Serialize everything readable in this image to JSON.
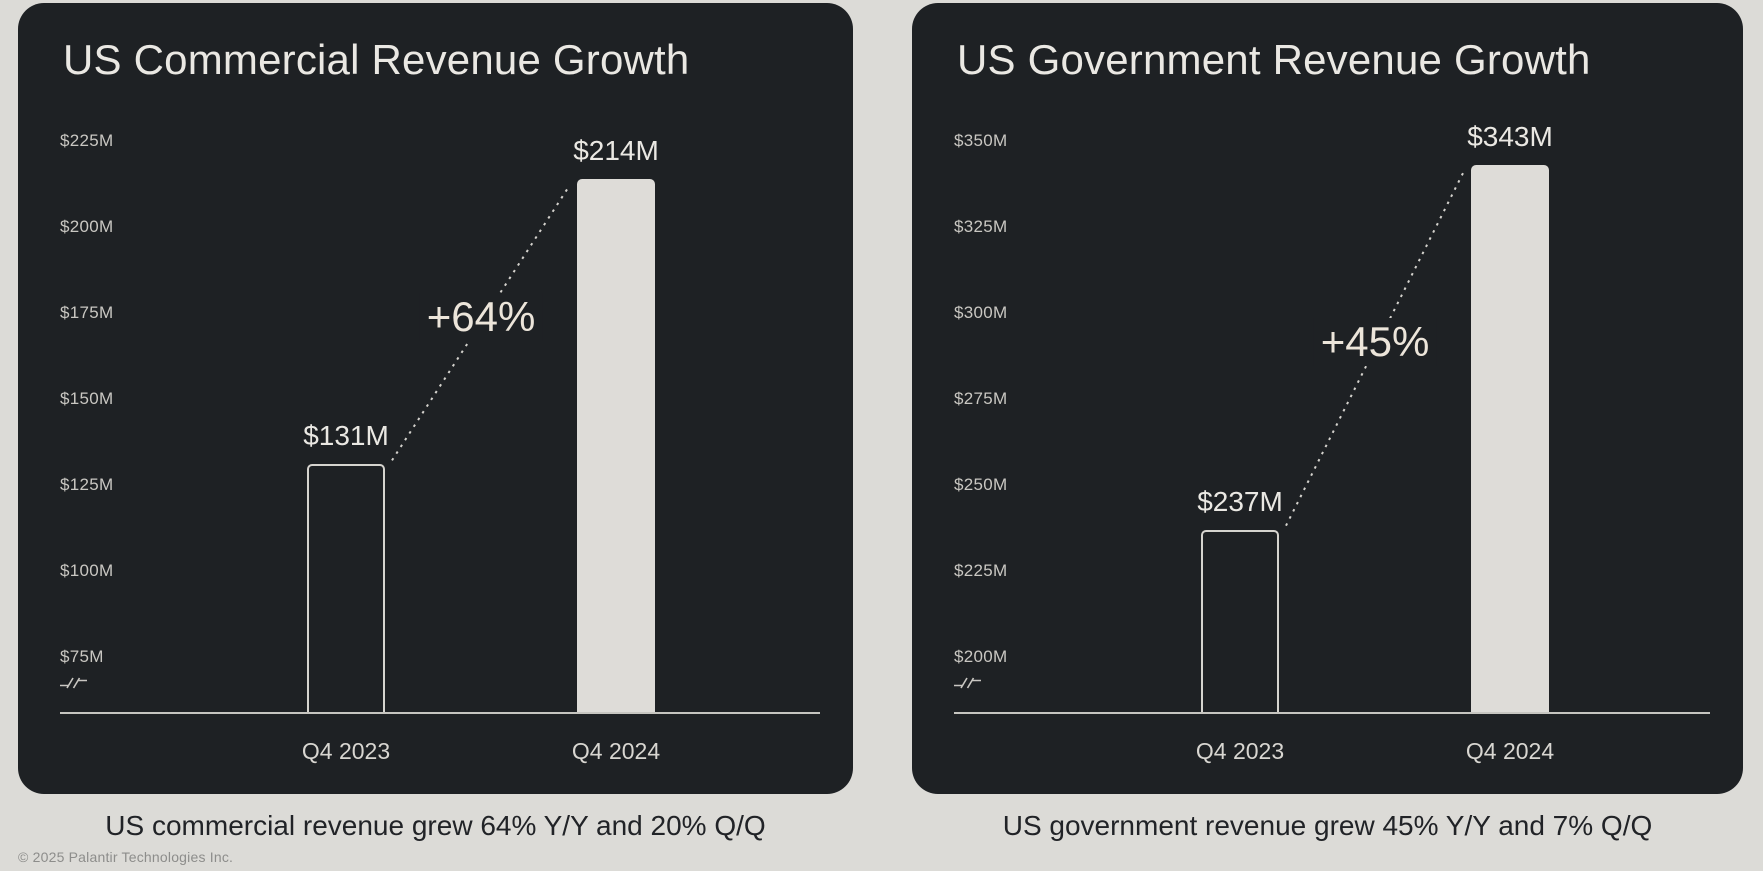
{
  "page": {
    "footer": "© 2025 Palantir Technologies Inc.",
    "colors": {
      "page_bg": "#dcdbd7",
      "card_bg": "#1e2124",
      "text_light": "#eae8e3",
      "growth_color": "#ece5da",
      "tick_color": "#c9c7c2",
      "xtick_color": "#d8d6d1",
      "axis_color": "#c6c5c0",
      "bar_fill": "#dedcd8",
      "bar_outline": "#d6d4cf",
      "dotted_line": "#d4d2cd",
      "caption_color": "#212327",
      "footer_color": "#8d8d8b"
    }
  },
  "chart_data": [
    {
      "type": "bar",
      "title": "US Commercial Revenue Growth",
      "caption": "US commercial revenue grew 64% Y/Y and 20% Q/Q",
      "categories": [
        "Q4 2023",
        "Q4 2024"
      ],
      "values": [
        131,
        214
      ],
      "value_labels": [
        "$131M",
        "$214M"
      ],
      "growth_annotation": "+64%",
      "unit": "USD millions",
      "bar_styles": [
        "outline",
        "filled"
      ],
      "grid": false,
      "legend": null,
      "y_axis": {
        "ticks": [
          "$225M",
          "$200M",
          "$175M",
          "$150M",
          "$125M",
          "$100M",
          "$75M"
        ],
        "tick_values": [
          225,
          200,
          175,
          150,
          125,
          100,
          75
        ],
        "step": 25,
        "axis_break": true
      }
    },
    {
      "type": "bar",
      "title": "US Government Revenue Growth",
      "caption": "US government revenue grew 45% Y/Y and 7% Q/Q",
      "categories": [
        "Q4 2023",
        "Q4 2024"
      ],
      "values": [
        237,
        343
      ],
      "value_labels": [
        "$237M",
        "$343M"
      ],
      "growth_annotation": "+45%",
      "unit": "USD millions",
      "bar_styles": [
        "outline",
        "filled"
      ],
      "grid": false,
      "legend": null,
      "y_axis": {
        "ticks": [
          "$350M",
          "$325M",
          "$300M",
          "$275M",
          "$250M",
          "$225M",
          "$200M"
        ],
        "tick_values": [
          350,
          325,
          300,
          275,
          250,
          225,
          200
        ],
        "step": 25,
        "axis_break": true
      }
    }
  ]
}
